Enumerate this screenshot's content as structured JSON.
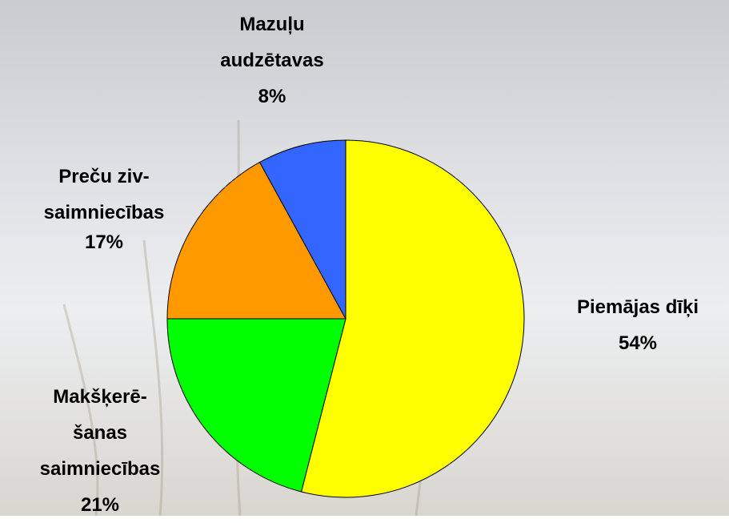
{
  "chart_data": {
    "type": "pie",
    "categories": [
      "Piemājas dīķi",
      "Makšķerē-\nšanas\nsaimniecības",
      "Preču ziv-\nsaimniecības",
      "Mazuļu\naudzētavas"
    ],
    "values": [
      54,
      21,
      17,
      8
    ],
    "value_labels": [
      "54%",
      "21%",
      "17%",
      "8%"
    ],
    "colors": [
      "#ffff00",
      "#00ff00",
      "#ff9900",
      "#3366ff"
    ]
  }
}
